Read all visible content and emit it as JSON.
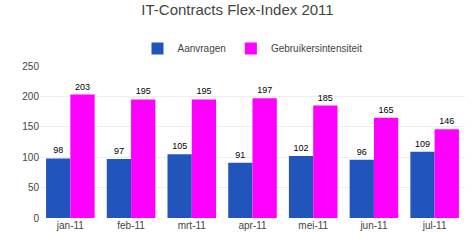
{
  "chart_data": {
    "type": "bar",
    "title": "IT-Contracts Flex-Index 2011",
    "categories": [
      "jan-11",
      "feb-11",
      "mrt-11",
      "apr-11",
      "mei-11",
      "jun-11",
      "jul-11"
    ],
    "series": [
      {
        "name": "Aanvragen",
        "color": "#2255bb",
        "values": [
          98,
          97,
          105,
          91,
          102,
          96,
          109
        ]
      },
      {
        "name": "Gebruikersintensiteit",
        "color": "#ff00ff",
        "values": [
          203,
          195,
          195,
          197,
          185,
          165,
          146
        ]
      }
    ],
    "ylim": [
      0,
      250
    ],
    "yticks": [
      0,
      50,
      100,
      150,
      200,
      250
    ],
    "grid": true,
    "legend": "top",
    "data_labels": true
  }
}
